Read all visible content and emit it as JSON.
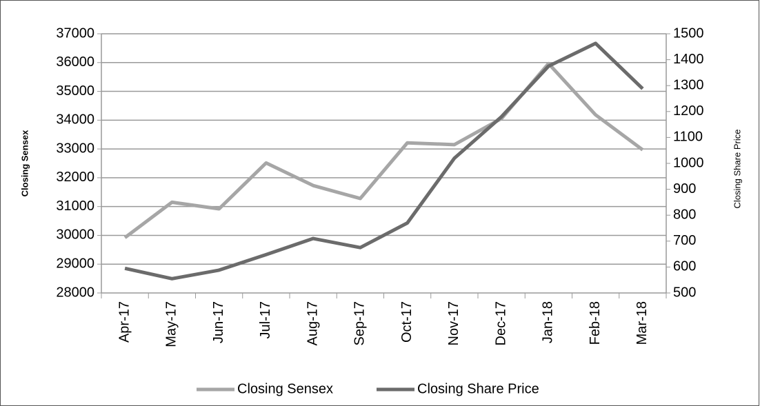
{
  "chart_data": {
    "type": "line",
    "categories": [
      "Apr-17",
      "May-17",
      "Jun-17",
      "Jul-17",
      "Aug-17",
      "Sep-17",
      "Oct-17",
      "Nov-17",
      "Dec-17",
      "Jan-18",
      "Feb-18",
      "Mar-18"
    ],
    "series": [
      {
        "name": "Closing Sensex",
        "color": "#a6a6a6",
        "values": [
          29920,
          31150,
          30920,
          32515,
          31730,
          31280,
          33213,
          33150,
          34057,
          35965,
          34184,
          32969
        ]
      },
      {
        "name": "Closing Share Price",
        "color": "#6b6b6b",
        "axis": "y2",
        "values": [
          595,
          555,
          588,
          648,
          710,
          675,
          770,
          1020,
          1180,
          1375,
          1463,
          1288
        ]
      }
    ],
    "ylabel": "Closing Sensex",
    "y2label": "Closing Share Price",
    "ylim": [
      28000,
      37000
    ],
    "yticks": [
      28000,
      29000,
      30000,
      31000,
      32000,
      33000,
      34000,
      35000,
      36000,
      37000
    ],
    "y2lim": [
      500,
      1500
    ],
    "y2ticks": [
      500,
      600,
      700,
      800,
      900,
      1000,
      1100,
      1200,
      1300,
      1400,
      1500
    ],
    "grid": true,
    "legend": "bottom"
  }
}
